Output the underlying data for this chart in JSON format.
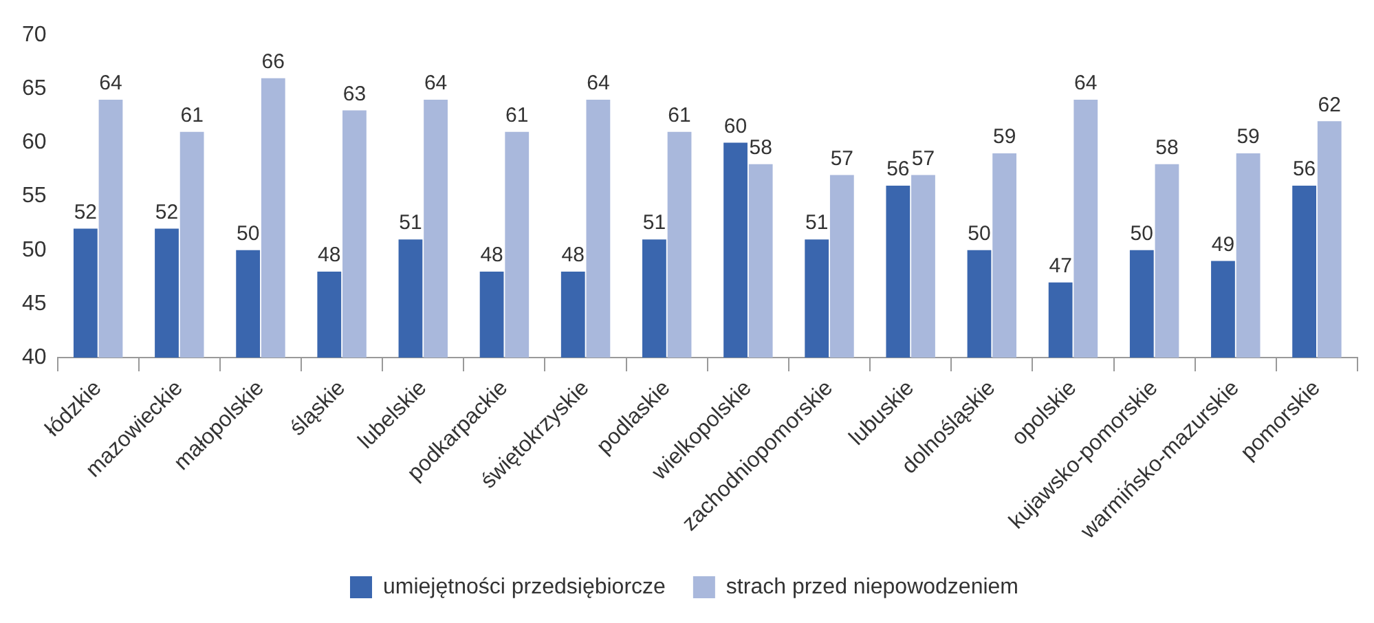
{
  "chart_data": {
    "type": "bar",
    "categories": [
      "łódzkie",
      "mazowieckie",
      "małopolskie",
      "śląskie",
      "lubelskie",
      "podkarpackie",
      "świętokrzyskie",
      "podlaskie",
      "wielkopolskie",
      "zachodniopomorskie",
      "lubuskie",
      "dolnośląskie",
      "opolskie",
      "kujawsko-pomorskie",
      "warmińsko-mazurskie",
      "pomorskie"
    ],
    "series": [
      {
        "name": "umiejętności przedsiębiorcze",
        "color": "#3a66ae",
        "values": [
          52,
          52,
          50,
          48,
          51,
          48,
          48,
          51,
          60,
          51,
          56,
          50,
          47,
          50,
          49,
          56
        ]
      },
      {
        "name": "strach przed niepowodzeniem",
        "color": "#a9b8dc",
        "values": [
          64,
          61,
          66,
          63,
          64,
          61,
          64,
          61,
          58,
          57,
          57,
          59,
          64,
          58,
          59,
          62
        ]
      }
    ],
    "ylim": [
      40,
      70
    ],
    "yticks": [
      40,
      45,
      50,
      55,
      60,
      65,
      70
    ],
    "grid": false,
    "legend": "bottom",
    "data_labels": true
  }
}
